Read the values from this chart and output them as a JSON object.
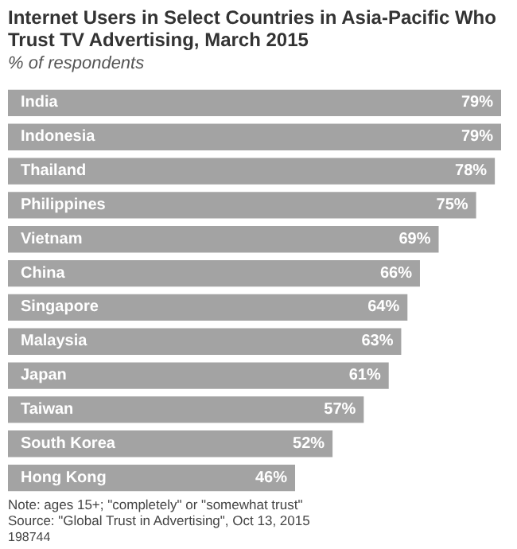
{
  "chart_data": {
    "type": "bar",
    "orientation": "horizontal",
    "title": "Internet Users in Select Countries in Asia-Pacific Who Trust TV Advertising, March 2015",
    "subtitle": "% of respondents",
    "categories": [
      "India",
      "Indonesia",
      "Thailand",
      "Philippines",
      "Vietnam",
      "China",
      "Singapore",
      "Malaysia",
      "Japan",
      "Taiwan",
      "South Korea",
      "Hong Kong"
    ],
    "values": [
      79,
      79,
      78,
      75,
      69,
      66,
      64,
      63,
      61,
      57,
      52,
      46
    ],
    "value_labels": [
      "79%",
      "79%",
      "78%",
      "75%",
      "69%",
      "66%",
      "64%",
      "63%",
      "61%",
      "57%",
      "52%",
      "46%"
    ],
    "color": "#a3a3a3",
    "annotations": [
      "Note: ages 15+; \"completely\" or \"somewhat trust\"",
      "Source: \"Global Trust in Advertising\", Oct 13, 2015",
      "198744"
    ]
  }
}
